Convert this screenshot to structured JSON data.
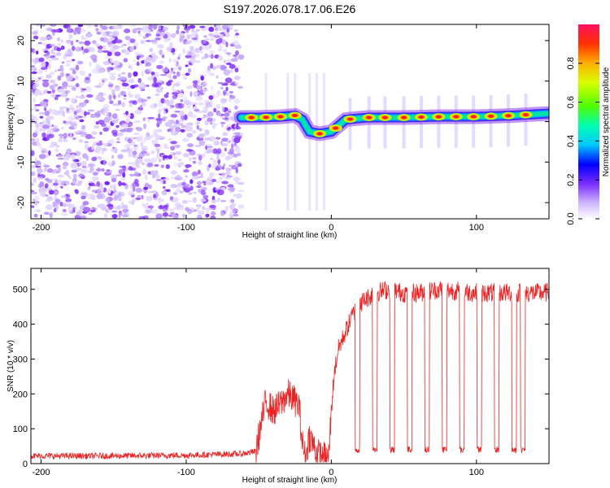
{
  "title": "S197.2026.078.17.06.E26",
  "chart_data": [
    {
      "type": "heatmap",
      "title": "S197.2026.078.17.06.E26",
      "xlabel": "Height of straight line (km)",
      "ylabel": "Frequency (Hz)",
      "xlim": [
        -207,
        150
      ],
      "ylim": [
        -24,
        24
      ],
      "xticks": [
        -200,
        -100,
        0,
        100
      ],
      "yticks": [
        -20,
        -10,
        0,
        10,
        20
      ],
      "colorbar": {
        "label": "Normalized spectral amplitude",
        "range": [
          0.0,
          1.0
        ],
        "ticks": [
          "0.0",
          "0.2",
          "0.4",
          "0.6",
          "0.8"
        ]
      },
      "ridge": {
        "description": "frequency of peak amplitude vs height",
        "x": [
          -62,
          -50,
          -35,
          -25,
          -20,
          -15,
          -8,
          0,
          5,
          10,
          25,
          50,
          75,
          100,
          125,
          150
        ],
        "y": [
          1.0,
          1.0,
          1.2,
          1.5,
          0.5,
          -2.5,
          -3.0,
          -2.5,
          -1.0,
          0.5,
          1.0,
          1.0,
          1.2,
          1.2,
          1.5,
          2.0
        ]
      },
      "pulse_centers_km": [
        13,
        26,
        37,
        50,
        62,
        74,
        86,
        98,
        110,
        122,
        134
      ]
    },
    {
      "type": "line",
      "xlabel": "Height of straight line (km)",
      "ylabel": "SNR (10 * v/v)",
      "xlim": [
        -207,
        150
      ],
      "ylim": [
        0,
        560
      ],
      "xticks": [
        -200,
        -100,
        0,
        100
      ],
      "yticks": [
        0,
        100,
        200,
        300,
        400,
        500
      ],
      "series": [
        {
          "name": "SNR",
          "color": "#ee2222",
          "x": [
            -207,
            -150,
            -100,
            -62,
            -52,
            -48,
            -45,
            -40,
            -35,
            -30,
            -25,
            -22,
            -20,
            -18,
            -15,
            -10,
            -5,
            -2,
            0,
            2,
            5,
            10,
            15,
            20,
            30,
            40,
            50,
            60,
            75,
            100,
            125,
            150
          ],
          "y": [
            22,
            22,
            24,
            28,
            35,
            120,
            180,
            150,
            170,
            200,
            180,
            160,
            60,
            20,
            80,
            30,
            20,
            10,
            150,
            260,
            330,
            380,
            430,
            460,
            490,
            500,
            490,
            490,
            500,
            490,
            490,
            490
          ]
        }
      ],
      "dropouts": {
        "description": "narrow drops to low SNR within the high plateau",
        "x": [
          18,
          30,
          42,
          54,
          66,
          78,
          90,
          102,
          114,
          126,
          132
        ],
        "y": [
          40,
          45,
          40,
          45,
          40,
          40,
          45,
          40,
          45,
          40,
          45
        ]
      }
    }
  ]
}
